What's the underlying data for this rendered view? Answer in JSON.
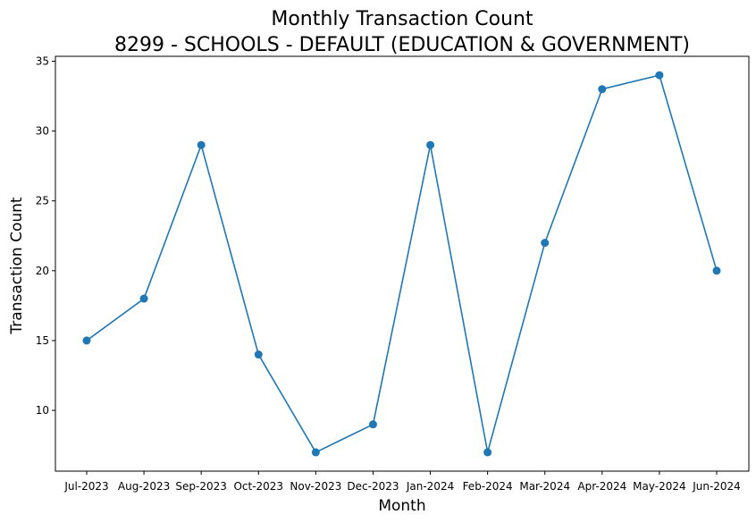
{
  "chart_data": {
    "type": "line",
    "title": "Monthly Transaction Count",
    "subtitle": "8299 - SCHOOLS - DEFAULT (EDUCATION & GOVERNMENT)",
    "xlabel": "Month",
    "ylabel": "Transaction Count",
    "categories": [
      "Jul-2023",
      "Aug-2023",
      "Sep-2023",
      "Oct-2023",
      "Nov-2023",
      "Dec-2023",
      "Jan-2024",
      "Feb-2024",
      "Mar-2024",
      "Apr-2024",
      "May-2024",
      "Jun-2024"
    ],
    "values": [
      15,
      18,
      29,
      14,
      7,
      9,
      29,
      7,
      22,
      33,
      34,
      20
    ],
    "ylim": [
      5.65,
      35.35
    ],
    "yticks": [
      10,
      15,
      20,
      25,
      30,
      35
    ],
    "grid": false,
    "line_color": "#1f77b4",
    "marker": "circle"
  }
}
